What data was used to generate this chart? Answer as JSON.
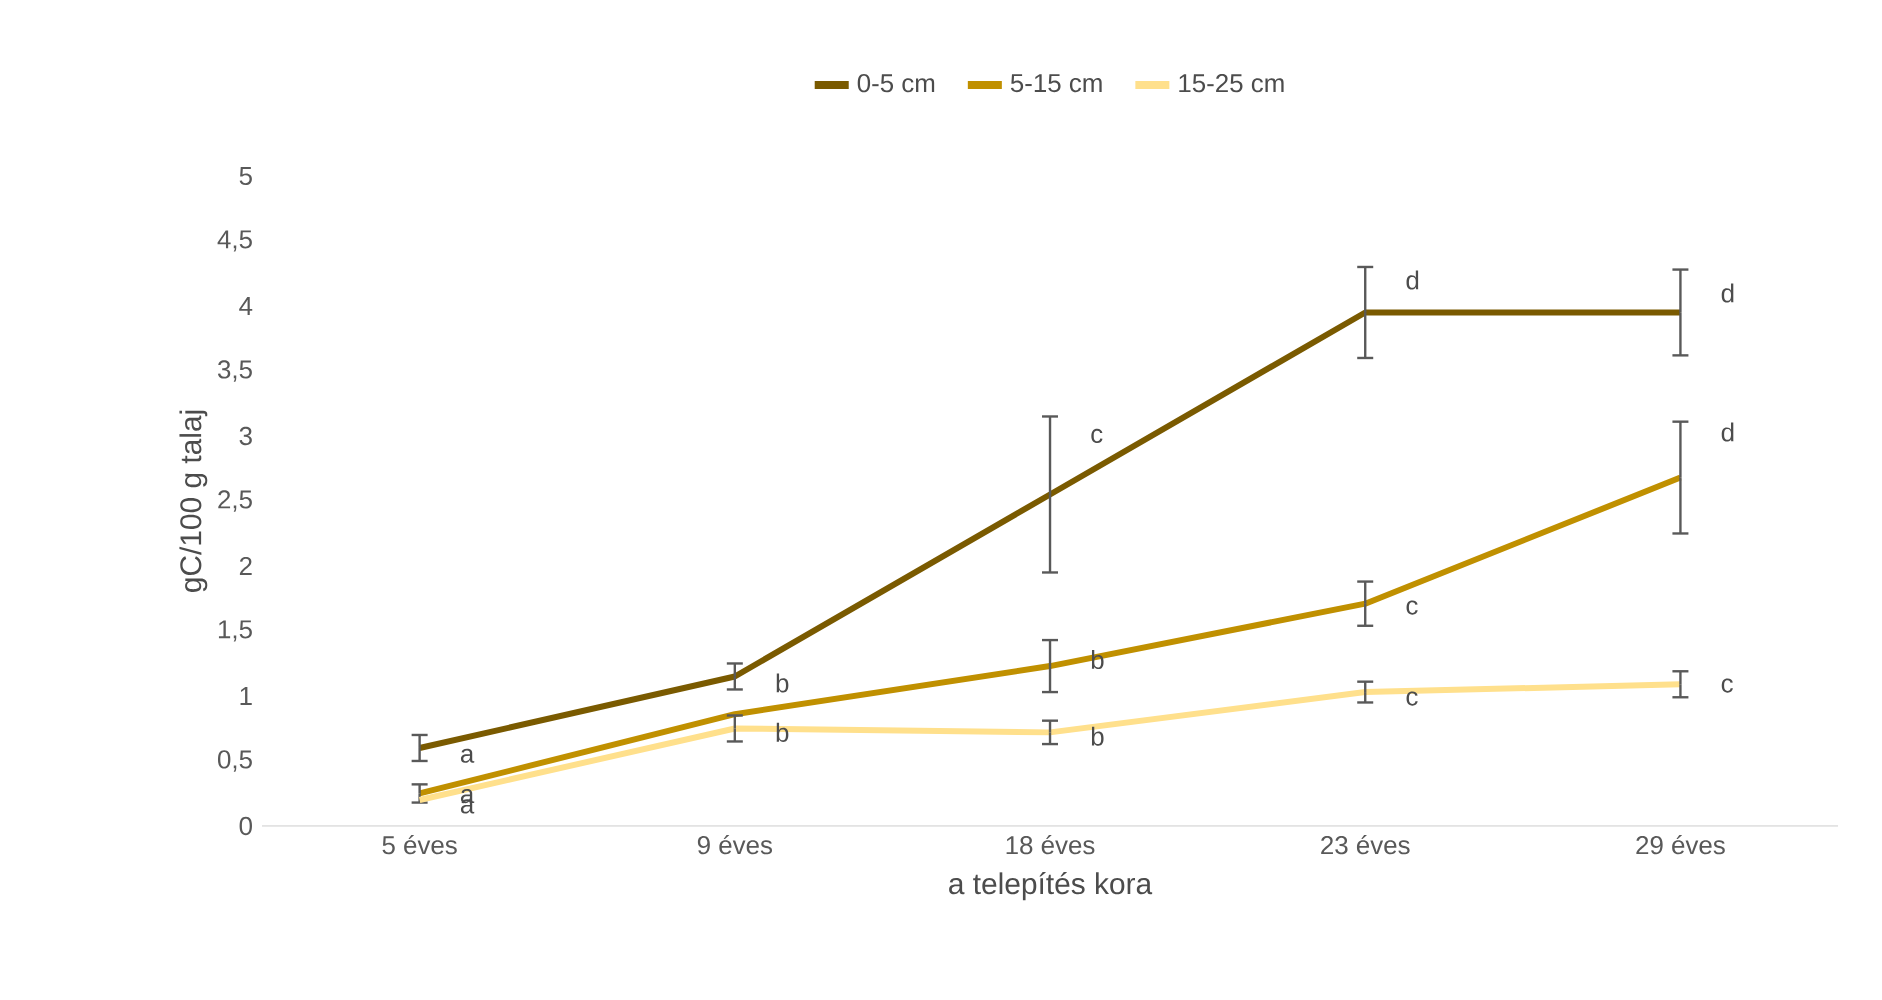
{
  "chart_data": {
    "type": "line",
    "xlabel": "a telepítés kora",
    "ylabel": "gC/100 g talaj",
    "categories": [
      "5 éves",
      "9 éves",
      "18 éves",
      "23 éves",
      "29 éves"
    ],
    "series": [
      {
        "name": "0-5 cm",
        "color": "#7a5a00",
        "values": [
          0.6,
          1.15,
          2.55,
          3.95,
          3.95
        ],
        "errors": [
          0.1,
          0.1,
          0.6,
          0.35,
          0.33
        ]
      },
      {
        "name": "5-15 cm",
        "color": "#c09000",
        "values": [
          0.25,
          0.86,
          1.23,
          1.71,
          2.68
        ],
        "errors": [
          0.07,
          null,
          0.2,
          0.17,
          0.43
        ]
      },
      {
        "name": "15-25 cm",
        "color": "#ffe08c",
        "values": [
          0.2,
          0.75,
          0.72,
          1.03,
          1.09
        ],
        "errors": [
          null,
          0.1,
          0.09,
          0.08,
          0.1
        ]
      }
    ],
    "ylim": [
      0,
      5
    ],
    "yticks": [
      0,
      {
        "value": 0.5,
        "label": "0,5"
      },
      1,
      {
        "value": 1.5,
        "label": "1,5"
      },
      2,
      {
        "value": 2.5,
        "label": "2,5"
      },
      3,
      {
        "value": 3.5,
        "label": "3,5"
      },
      4,
      {
        "value": 4.5,
        "label": "4,5"
      },
      5
    ],
    "legend": "top",
    "grid": false,
    "annotations": [
      {
        "text": "a",
        "x": "5 éves",
        "y": 0.54
      },
      {
        "text": "b",
        "x": "9 éves",
        "y": 1.1
      },
      {
        "text": "c",
        "x": "18 éves",
        "y": 3.0
      },
      {
        "text": "d",
        "x": "23 éves",
        "y": 4.2
      },
      {
        "text": "d",
        "x": "29 éves",
        "y": 4.1
      },
      {
        "text": "a",
        "x": "5 éves",
        "y": 0.23
      },
      {
        "text": "b",
        "x": "18 éves",
        "y": 1.28
      },
      {
        "text": "c",
        "x": "23 éves",
        "y": 1.68
      },
      {
        "text": "d",
        "x": "29 éves",
        "y": 3.03
      },
      {
        "text": "a",
        "x": "5 éves",
        "y": 0.15
      },
      {
        "text": "b",
        "x": "9 éves",
        "y": 0.72
      },
      {
        "text": "b",
        "x": "18 éves",
        "y": 0.69
      },
      {
        "text": "c",
        "x": "23 éves",
        "y": 0.98
      },
      {
        "text": "c",
        "x": "29 éves",
        "y": 1.08
      }
    ]
  }
}
